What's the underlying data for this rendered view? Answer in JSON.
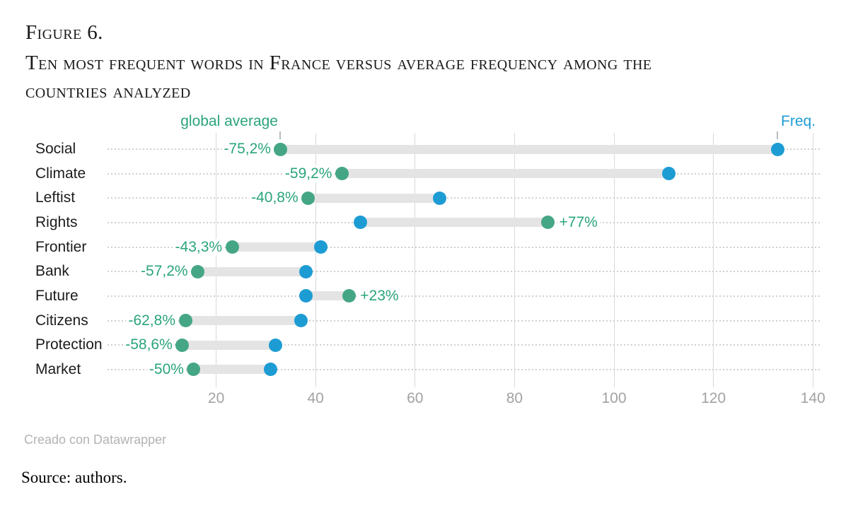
{
  "title": {
    "figure_label": "Figure 6.",
    "lines": [
      "Ten most frequent words in France versus average frequency among the",
      "countries analyzed"
    ]
  },
  "annotations": {
    "global_average_label": "global average",
    "freq_label": "Freq."
  },
  "footer": {
    "credit": "Creado con Datawrapper",
    "source": "Source: authors."
  },
  "colors": {
    "green_text": "#2ba47c",
    "green_dot": "#45a685",
    "blue": "#1d9cd4",
    "bar": "#e4e4e4",
    "grid": "#d9d9d9",
    "axis_text": "#a2a2a2",
    "category_text": "#1c1c1c"
  },
  "chart_data": {
    "type": "dumbbell",
    "title": "Ten most frequent words in France versus average frequency among the countries analyzed",
    "categories": [
      "Social",
      "Climate",
      "Leftist",
      "Rights",
      "Frontier",
      "Bank",
      "Future",
      "Citizens",
      "Protection",
      "Market"
    ],
    "series": [
      {
        "name": "Freq.",
        "color": "#1d9cd4",
        "values": [
          133,
          111,
          65,
          49,
          41,
          38,
          38,
          37,
          32,
          31
        ]
      },
      {
        "name": "global average",
        "color": "#45a685",
        "values": [
          33.0,
          45.3,
          38.5,
          86.7,
          23.2,
          16.3,
          46.7,
          13.8,
          13.2,
          15.5
        ]
      }
    ],
    "point_labels": [
      "-75,2%",
      "-59,2%",
      "-40,8%",
      "+77%",
      "-43,3%",
      "-57,2%",
      "+23%",
      "-62,8%",
      "-58,6%",
      "-50%"
    ],
    "xticks": [
      20,
      40,
      60,
      80,
      100,
      120,
      140
    ],
    "xlim": [
      0,
      142
    ],
    "xlabel": "",
    "ylabel": "",
    "grid": true,
    "legend_position": "top annotations"
  }
}
